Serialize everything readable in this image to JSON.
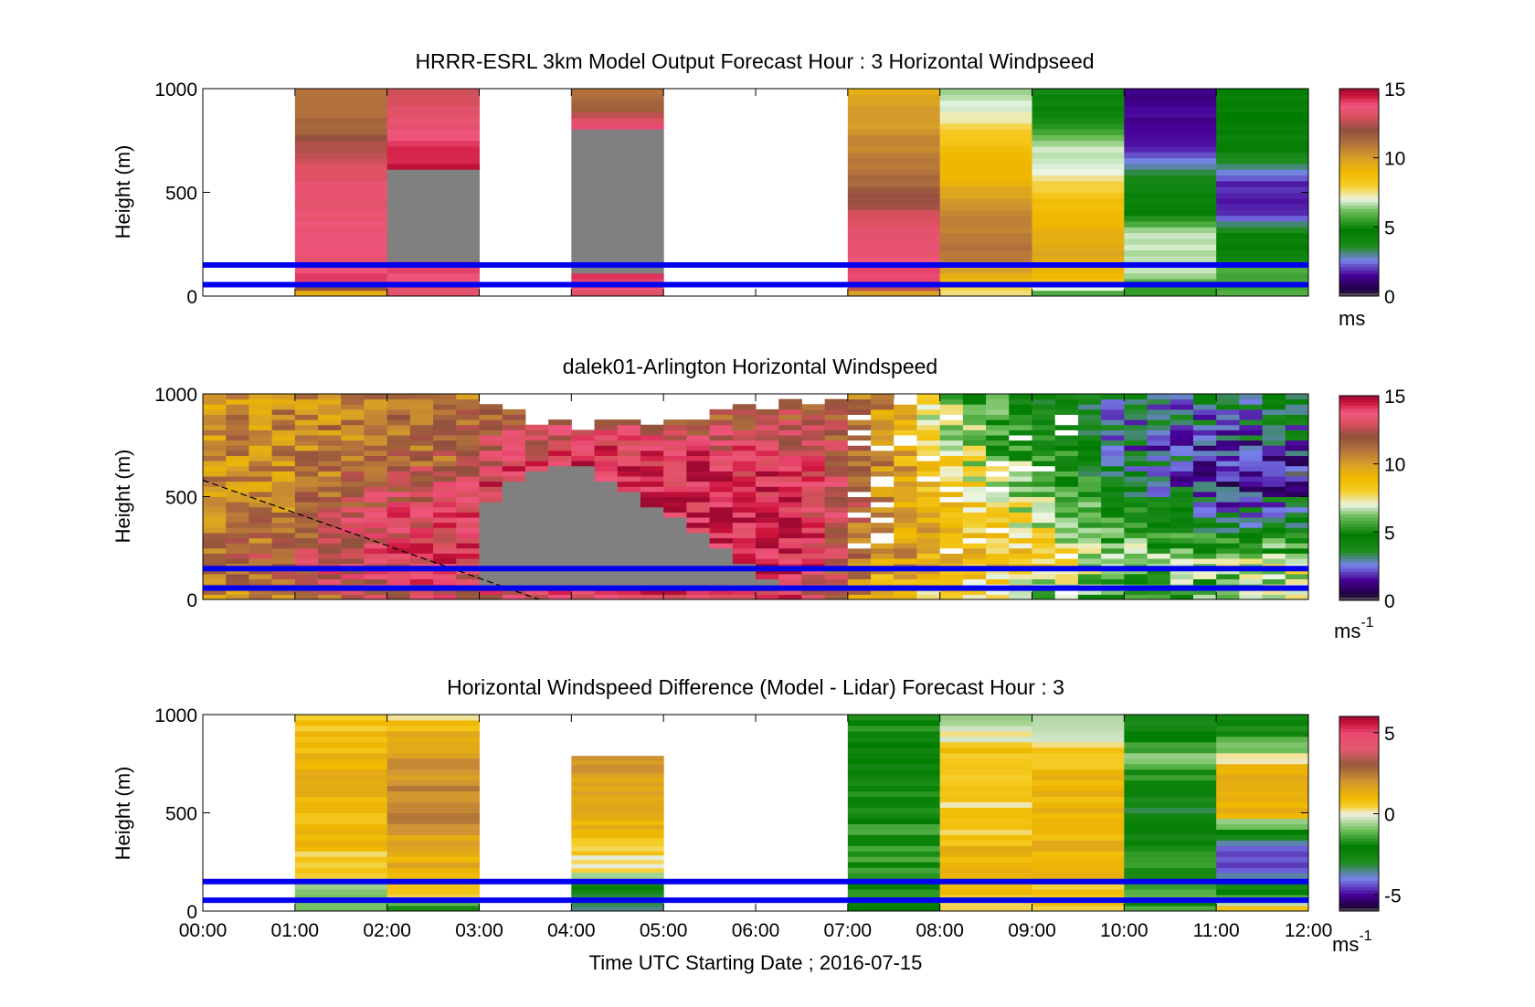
{
  "figure": {
    "xlabel": "Time UTC  Starting Date ; 2016-07-15",
    "x_ticks": [
      "00:00",
      "01:00",
      "02:00",
      "03:00",
      "04:00",
      "05:00",
      "06:00",
      "07:00",
      "08:00",
      "09:00",
      "10:00",
      "11:00",
      "12:00"
    ]
  },
  "chart_data": [
    {
      "type": "heatmap",
      "title": "HRRR-ESRL 3km Model Output   Forecast Hour : 3 Horizontal Windpseed",
      "xlabel": "",
      "ylabel": "Height (m)",
      "ylim": [
        0,
        1000
      ],
      "y_ticks": [
        "0",
        "500",
        "1000"
      ],
      "xlim_hours": [
        0,
        12
      ],
      "colorbar": {
        "ticks": [
          "0",
          "5",
          "10",
          "15"
        ],
        "range": [
          0,
          15
        ],
        "unit_main": "ms",
        "unit_sup": ""
      },
      "reference_lines_m": [
        150,
        55
      ],
      "colors": {
        "reference_line": "#0000ee",
        "missing_data": "#808080"
      },
      "segments": [
        {
          "t": [
            1,
            2
          ],
          "profile": [
            [
              0,
              8
            ],
            [
              60,
              14
            ],
            [
              180,
              13.5
            ],
            [
              400,
              13.6
            ],
            [
              600,
              13.2
            ],
            [
              700,
              12.6
            ],
            [
              800,
              11.4
            ],
            [
              1000,
              11
            ]
          ]
        },
        {
          "t": [
            2,
            3
          ],
          "profile": [
            [
              0,
              13
            ],
            [
              120,
              14
            ],
            [
              170,
              14.6
            ],
            [
              180,
              "missing"
            ],
            [
              590,
              "missing"
            ],
            [
              600,
              14.6
            ],
            [
              700,
              14.2
            ],
            [
              850,
              13.4
            ],
            [
              1000,
              12.8
            ]
          ]
        },
        {
          "t": [
            4,
            5
          ],
          "profile": [
            [
              0,
              13
            ],
            [
              110,
              14.6
            ],
            [
              120,
              "missing"
            ],
            [
              790,
              "missing"
            ],
            [
              800,
              14.6
            ],
            [
              900,
              11.8
            ],
            [
              1000,
              11
            ]
          ]
        },
        {
          "t": [
            7,
            8
          ],
          "profile": [
            [
              0,
              9
            ],
            [
              60,
              14
            ],
            [
              200,
              13.6
            ],
            [
              350,
              13.2
            ],
            [
              450,
              12.2
            ],
            [
              600,
              11
            ],
            [
              750,
              10.4
            ],
            [
              1000,
              9.6
            ]
          ]
        },
        {
          "t": [
            8,
            9
          ],
          "profile": [
            [
              0,
              7
            ],
            [
              100,
              9.5
            ],
            [
              200,
              11
            ],
            [
              350,
              10.8
            ],
            [
              500,
              9.6
            ],
            [
              700,
              8.8
            ],
            [
              900,
              7
            ],
            [
              1000,
              6.5
            ]
          ]
        },
        {
          "t": [
            9,
            10
          ],
          "profile": [
            [
              0,
              5
            ],
            [
              80,
              9
            ],
            [
              200,
              9.6
            ],
            [
              450,
              8.8
            ],
            [
              600,
              7.2
            ],
            [
              700,
              6.8
            ],
            [
              900,
              4.5
            ],
            [
              1000,
              4
            ]
          ]
        },
        {
          "t": [
            10,
            11
          ],
          "profile": [
            [
              0,
              5
            ],
            [
              100,
              6.5
            ],
            [
              300,
              6.8
            ],
            [
              400,
              4.6
            ],
            [
              550,
              4.2
            ],
            [
              700,
              1.8
            ],
            [
              850,
              1.4
            ],
            [
              1000,
              1.2
            ]
          ]
        },
        {
          "t": [
            11,
            12
          ],
          "profile": [
            [
              0,
              6
            ],
            [
              150,
              5.5
            ],
            [
              300,
              4.2
            ],
            [
              400,
              1.6
            ],
            [
              550,
              1.8
            ],
            [
              700,
              4.4
            ],
            [
              850,
              4.6
            ],
            [
              1000,
              4.8
            ]
          ]
        }
      ]
    },
    {
      "type": "heatmap",
      "title": "dalek01-Arlington  Horizontal Windspeed",
      "xlabel": "",
      "ylabel": "Height (m)",
      "ylim": [
        0,
        1000
      ],
      "y_ticks": [
        "0",
        "500",
        "1000"
      ],
      "xlim_hours": [
        0,
        12
      ],
      "colorbar": {
        "ticks": [
          "0",
          "5",
          "10",
          "15"
        ],
        "range": [
          0,
          15
        ],
        "unit_main": "ms",
        "unit_sup": "-1"
      },
      "reference_lines_m": [
        150,
        55
      ],
      "colors": {
        "reference_line": "#0000ee",
        "missing_data": "#808080"
      },
      "dashed_line": {
        "from": [
          0,
          580
        ],
        "to": [
          3.65,
          0
        ]
      },
      "column_hours": 0.25,
      "time_anchors": [
        {
          "t": 0.0,
          "top": 1000,
          "profile": [
            [
              0,
              10
            ],
            [
              200,
              11
            ],
            [
              500,
              10.5
            ],
            [
              800,
              10.3
            ],
            [
              1000,
              10
            ]
          ]
        },
        {
          "t": 1.0,
          "top": 1000,
          "profile": [
            [
              0,
              11
            ],
            [
              150,
              12.5
            ],
            [
              300,
              11.5
            ],
            [
              600,
              10.5
            ],
            [
              1000,
              10.5
            ]
          ]
        },
        {
          "t": 1.6,
          "top": 1000,
          "profile": [
            [
              0,
              12
            ],
            [
              150,
              13.5
            ],
            [
              400,
              12.5
            ],
            [
              700,
              11
            ],
            [
              1000,
              10.5
            ]
          ]
        },
        {
          "t": 2.7,
          "top": 1000,
          "profile": [
            [
              0,
              13
            ],
            [
              150,
              13.6
            ],
            [
              450,
              14
            ],
            [
              700,
              11.5
            ],
            [
              1000,
              10.5
            ]
          ]
        },
        {
          "t": 3.2,
          "top": 920,
          "gap": [
            0,
            560
          ],
          "profile": [
            [
              0,
              13
            ],
            [
              300,
              14.2
            ],
            [
              600,
              14
            ],
            [
              800,
              12.5
            ],
            [
              1000,
              11.5
            ]
          ]
        },
        {
          "t": 4.0,
          "top": 820,
          "gap": [
            0,
            670
          ],
          "profile": [
            [
              0,
              14
            ],
            [
              500,
              14.5
            ],
            [
              700,
              14.3
            ],
            [
              900,
              12
            ],
            [
              1000,
              12
            ]
          ]
        },
        {
          "t": 5.3,
          "top": 880,
          "gap": [
            0,
            360
          ],
          "profile": [
            [
              0,
              14
            ],
            [
              400,
              14.5
            ],
            [
              700,
              14
            ],
            [
              900,
              11.5
            ],
            [
              1000,
              12
            ]
          ]
        },
        {
          "t": 6.5,
          "top": 960,
          "profile": [
            [
              0,
              14
            ],
            [
              300,
              14.5
            ],
            [
              700,
              13.5
            ],
            [
              900,
              12
            ],
            [
              1000,
              12
            ]
          ]
        },
        {
          "t": 7.3,
          "top": 1000,
          "profile": [
            [
              0,
              9
            ],
            [
              200,
              10
            ],
            [
              500,
              11
            ],
            [
              800,
              11
            ],
            [
              1000,
              10.5
            ]
          ]
        },
        {
          "t": 8.0,
          "top": 1000,
          "profile": [
            [
              0,
              8
            ],
            [
              200,
              9.5
            ],
            [
              500,
              9
            ],
            [
              800,
              7
            ],
            [
              1000,
              6.5
            ]
          ]
        },
        {
          "t": 9.0,
          "top": 1000,
          "profile": [
            [
              0,
              6.5
            ],
            [
              200,
              8.5
            ],
            [
              500,
              6.5
            ],
            [
              800,
              5
            ],
            [
              1000,
              4
            ]
          ]
        },
        {
          "t": 10.0,
          "top": 1000,
          "profile": [
            [
              0,
              5
            ],
            [
              200,
              6.5
            ],
            [
              500,
              4.5
            ],
            [
              800,
              2.5
            ],
            [
              1000,
              3
            ]
          ]
        },
        {
          "t": 11.0,
          "top": 1000,
          "profile": [
            [
              0,
              5.5
            ],
            [
              200,
              6.5
            ],
            [
              400,
              3
            ],
            [
              600,
              1.5
            ],
            [
              800,
              2
            ],
            [
              1000,
              3.5
            ]
          ]
        },
        {
          "t": 12.0,
          "top": 1000,
          "profile": [
            [
              0,
              8
            ],
            [
              200,
              6.5
            ],
            [
              400,
              3.5
            ],
            [
              600,
              1
            ],
            [
              800,
              3
            ],
            [
              1000,
              4
            ]
          ]
        }
      ]
    },
    {
      "type": "heatmap",
      "title": "Horizontal Windspeed Difference (Model - Lidar) Forecast Hour : 3",
      "xlabel": "",
      "ylabel": "Height (m)",
      "ylim": [
        0,
        1000
      ],
      "y_ticks": [
        "0",
        "500",
        "1000"
      ],
      "xlim_hours": [
        0,
        12
      ],
      "colorbar": {
        "ticks": [
          "-5",
          "0",
          "5"
        ],
        "range": [
          -6,
          6
        ],
        "unit_main": "ms",
        "unit_sup": "-1"
      },
      "reference_lines_m": [
        150,
        55
      ],
      "colors": {
        "reference_line": "#0000ee",
        "missing_data": "#808080"
      },
      "segments": [
        {
          "t": [
            1,
            2
          ],
          "top": 1000,
          "profile": [
            [
              0,
              -1.5
            ],
            [
              100,
              -0.5
            ],
            [
              200,
              0.3
            ],
            [
              400,
              1
            ],
            [
              700,
              1.2
            ],
            [
              1000,
              0.6
            ]
          ]
        },
        {
          "t": [
            2,
            3
          ],
          "top": 1000,
          "profile": [
            [
              0,
              -2
            ],
            [
              100,
              0.8
            ],
            [
              300,
              1.4
            ],
            [
              500,
              2.3
            ],
            [
              800,
              1.8
            ],
            [
              1000,
              0.5
            ]
          ]
        },
        {
          "t": [
            4,
            5
          ],
          "top": 790,
          "profile": [
            [
              0,
              -3.5
            ],
            [
              100,
              -3
            ],
            [
              200,
              0
            ],
            [
              400,
              1
            ],
            [
              600,
              1.3
            ],
            [
              790,
              2
            ]
          ]
        },
        {
          "t": [
            7,
            8
          ],
          "top": 1000,
          "profile": [
            [
              0,
              -2
            ],
            [
              200,
              -1.8
            ],
            [
              400,
              -1.5
            ],
            [
              600,
              -2
            ],
            [
              800,
              -2.5
            ],
            [
              1000,
              -1.5
            ]
          ]
        },
        {
          "t": [
            8,
            9
          ],
          "top": 1000,
          "profile": [
            [
              0,
              0.5
            ],
            [
              200,
              1.5
            ],
            [
              400,
              0.7
            ],
            [
              600,
              0.4
            ],
            [
              800,
              0.8
            ],
            [
              1000,
              -0.8
            ]
          ]
        },
        {
          "t": [
            9,
            10
          ],
          "top": 1000,
          "profile": [
            [
              0,
              0.5
            ],
            [
              200,
              1
            ],
            [
              500,
              1.3
            ],
            [
              800,
              0.6
            ],
            [
              1000,
              -1
            ]
          ]
        },
        {
          "t": [
            10,
            11
          ],
          "top": 1000,
          "profile": [
            [
              0,
              -1.5
            ],
            [
              200,
              -1.5
            ],
            [
              500,
              -3
            ],
            [
              800,
              -1
            ],
            [
              1000,
              -3
            ]
          ]
        },
        {
          "t": [
            11,
            12
          ],
          "top": 1000,
          "profile": [
            [
              0,
              1
            ],
            [
              150,
              -3.5
            ],
            [
              300,
              -5
            ],
            [
              500,
              1
            ],
            [
              700,
              1.5
            ],
            [
              900,
              -2
            ],
            [
              1000,
              -2
            ]
          ]
        }
      ]
    }
  ]
}
